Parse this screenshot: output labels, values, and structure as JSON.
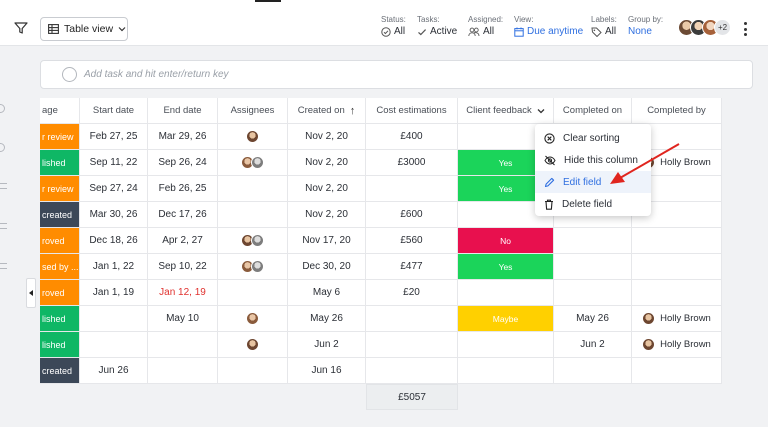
{
  "toolbar": {
    "view_label": "Table view",
    "filters": [
      {
        "label": "Status:",
        "value": "All",
        "icon": "check-circle-icon",
        "blue": false
      },
      {
        "label": "Tasks:",
        "value": "Active",
        "icon": "check-icon",
        "blue": false
      },
      {
        "label": "Assigned:",
        "value": "All",
        "icon": "people-icon",
        "blue": false
      },
      {
        "label": "View:",
        "value": "Due anytime",
        "icon": "calendar-icon",
        "blue": true
      },
      {
        "label": "Labels:",
        "value": "All",
        "icon": "tag-icon",
        "blue": false
      },
      {
        "label": "Group by:",
        "value": "None",
        "icon": "",
        "blue": true
      }
    ],
    "members_extra": "+2"
  },
  "add_task": {
    "placeholder": "Add task and hit enter/return key"
  },
  "columns": [
    "age",
    "Start date",
    "End date",
    "Assignees",
    "Created on",
    "Cost estimations",
    "Client feedback",
    "Completed on",
    "Completed by"
  ],
  "sorted_column_arrow": "↑",
  "rows": [
    {
      "stage": "r review",
      "stage_color": "#ff8c00",
      "start": "Feb 27, 25",
      "end": "Mar 29, 26",
      "end_red": false,
      "assignees": 1,
      "created": "Nov 2, 20",
      "cost": "£400",
      "feedback": "",
      "fb_color": "",
      "completed_on": "",
      "completed_by": ""
    },
    {
      "stage": "lished",
      "stage_color": "#0fb765",
      "start": "Sep 11, 22",
      "end": "Sep 26, 24",
      "end_red": false,
      "assignees": 2,
      "created": "Nov 2, 20",
      "cost": "£3000",
      "feedback": "Yes",
      "fb_color": "#1bd45a",
      "completed_on": "",
      "completed_by": "Holly Brown"
    },
    {
      "stage": "r review",
      "stage_color": "#ff8c00",
      "start": "Sep 27, 24",
      "end": "Feb 26, 25",
      "end_red": false,
      "assignees": 0,
      "created": "Nov 2, 20",
      "cost": "",
      "feedback": "Yes",
      "fb_color": "#1bd45a",
      "completed_on": "",
      "completed_by": ""
    },
    {
      "stage": "created",
      "stage_color": "#3c4858",
      "start": "Mar 30, 26",
      "end": "Dec 17, 26",
      "end_red": false,
      "assignees": 0,
      "created": "Nov 2, 20",
      "cost": "£600",
      "feedback": "",
      "fb_color": "",
      "completed_on": "",
      "completed_by": ""
    },
    {
      "stage": "roved",
      "stage_color": "#ff8c00",
      "start": "Dec 18, 26",
      "end": "Apr 2, 27",
      "end_red": false,
      "assignees": 2,
      "created": "Nov 17, 20",
      "cost": "£560",
      "feedback": "No",
      "fb_color": "#e8104e",
      "completed_on": "",
      "completed_by": ""
    },
    {
      "stage": "sed by ...",
      "stage_color": "#ff8c00",
      "start": "Jan 1, 22",
      "end": "Sep 10, 22",
      "end_red": false,
      "assignees": 2,
      "created": "Dec 30, 20",
      "cost": "£477",
      "feedback": "Yes",
      "fb_color": "#1bd45a",
      "completed_on": "",
      "completed_by": ""
    },
    {
      "stage": "roved",
      "stage_color": "#ff8c00",
      "start": "Jan 1, 19",
      "end": "Jan 12, 19",
      "end_red": true,
      "assignees": 0,
      "created": "May 6",
      "cost": "£20",
      "feedback": "",
      "fb_color": "",
      "completed_on": "",
      "completed_by": ""
    },
    {
      "stage": "lished",
      "stage_color": "#0fb765",
      "start": "",
      "end": "May 10",
      "end_red": false,
      "assignees": 1,
      "created": "May 26",
      "cost": "",
      "feedback": "Maybe",
      "fb_color": "#ffd000",
      "completed_on": "May 26",
      "completed_by": "Holly Brown"
    },
    {
      "stage": "lished",
      "stage_color": "#0fb765",
      "start": "",
      "end": "",
      "end_red": false,
      "assignees": 1,
      "created": "Jun 2",
      "cost": "",
      "feedback": "",
      "fb_color": "",
      "completed_on": "Jun 2",
      "completed_by": "Holly Brown"
    },
    {
      "stage": "created",
      "stage_color": "#3c4858",
      "start": "Jun 26",
      "end": "",
      "end_red": false,
      "assignees": 0,
      "created": "Jun 16",
      "cost": "",
      "feedback": "",
      "fb_color": "",
      "completed_on": "",
      "completed_by": ""
    }
  ],
  "cost_total": "£5057",
  "context_menu": {
    "items": [
      {
        "label": "Clear sorting",
        "icon": "clear-circle-icon",
        "active": false
      },
      {
        "label": "Hide this column",
        "icon": "eye-off-icon",
        "active": false
      },
      {
        "label": "Edit field",
        "icon": "pencil-icon",
        "active": true
      },
      {
        "label": "Delete field",
        "icon": "trash-icon",
        "active": false
      }
    ]
  },
  "colors": {
    "accent": "#2f6fe0",
    "annotation_arrow": "#e0251f"
  }
}
